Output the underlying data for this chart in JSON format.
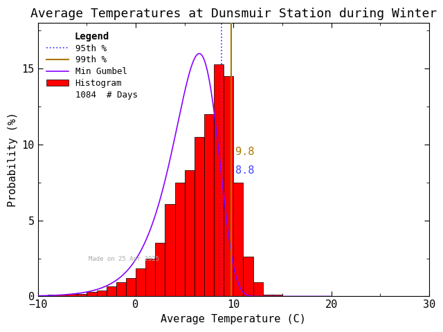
{
  "title": "Average Temperatures at Dunsmuir Station during Winter",
  "xlabel": "Average Temperature (C)",
  "ylabel": "Probability (%)",
  "xlim": [
    -10,
    30
  ],
  "ylim": [
    0,
    18
  ],
  "yticks": [
    0,
    5,
    10,
    15
  ],
  "xticks": [
    -10,
    0,
    10,
    20,
    30
  ],
  "bar_color": "#ff0000",
  "bar_edge_color": "#000000",
  "gumbel_color": "#8800ff",
  "line_95th_color": "#4444ff",
  "line_99th_color": "#aa7700",
  "n_days": 1084,
  "percentile_95": 8.8,
  "percentile_99": 9.8,
  "watermark": "Made on 25 Apr 2025",
  "bin_edges": [
    -9,
    -8,
    -7,
    -6,
    -5,
    -4,
    -3,
    -2,
    -1,
    0,
    1,
    2,
    3,
    4,
    5,
    6,
    7,
    8,
    9,
    10,
    11,
    12,
    13,
    14,
    15,
    16,
    17,
    18
  ],
  "bin_heights": [
    0.09,
    0.09,
    0.18,
    0.18,
    0.28,
    0.37,
    0.65,
    0.93,
    1.2,
    1.85,
    2.5,
    3.51,
    6.1,
    7.5,
    8.3,
    10.5,
    12.0,
    15.3,
    14.5,
    7.5,
    2.6,
    0.93,
    0.09,
    0.09,
    0.0,
    0.0,
    0.0
  ],
  "background_color": "#ffffff",
  "title_fontsize": 13,
  "axis_fontsize": 11,
  "legend_fontsize": 9,
  "annotation_fontsize": 11,
  "gumbel_mu": 6.5,
  "gumbel_beta": 2.3
}
